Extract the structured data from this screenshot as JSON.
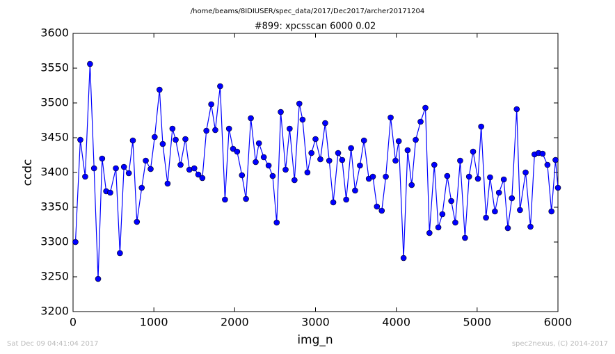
{
  "chart_data": {
    "type": "line",
    "subtitle": "/home/beams/8IDIUSER/spec_data/2017/Dec2017/archer20171204",
    "title": "#899: xpcsscan 6000 0.02",
    "x_label": "img_n",
    "y_label": "ccdc",
    "footer_left": "Sat Dec 09 04:41:04 2017",
    "footer_right": "spec2nexus, (C) 2014-2017",
    "x": [
      30,
      90,
      150,
      210,
      260,
      310,
      360,
      410,
      460,
      530,
      580,
      630,
      690,
      740,
      790,
      850,
      900,
      960,
      1010,
      1070,
      1110,
      1170,
      1230,
      1270,
      1330,
      1390,
      1440,
      1500,
      1550,
      1600,
      1650,
      1710,
      1760,
      1820,
      1880,
      1930,
      1980,
      2030,
      2090,
      2140,
      2200,
      2260,
      2300,
      2360,
      2420,
      2470,
      2520,
      2570,
      2630,
      2680,
      2740,
      2800,
      2840,
      2900,
      2950,
      3000,
      3060,
      3120,
      3170,
      3220,
      3280,
      3330,
      3380,
      3440,
      3490,
      3550,
      3600,
      3660,
      3710,
      3760,
      3820,
      3870,
      3930,
      3990,
      4030,
      4090,
      4140,
      4190,
      4240,
      4300,
      4360,
      4410,
      4470,
      4520,
      4570,
      4630,
      4680,
      4730,
      4790,
      4850,
      4900,
      4950,
      5010,
      5050,
      5110,
      5160,
      5220,
      5270,
      5330,
      5380,
      5430,
      5490,
      5530,
      5600,
      5660,
      5710,
      5760,
      5810,
      5870,
      5920,
      5970,
      6000
    ],
    "series": [
      {
        "color": "#0000ff",
        "values": [
          3300,
          3447,
          3394,
          3556,
          3406,
          3247,
          3420,
          3373,
          3371,
          3406,
          3284,
          3408,
          3399,
          3446,
          3329,
          3378,
          3417,
          3405,
          3451,
          3519,
          3441,
          3384,
          3463,
          3447,
          3411,
          3448,
          3404,
          3406,
          3397,
          3392,
          3460,
          3498,
          3461,
          3524,
          3361,
          3463,
          3434,
          3430,
          3396,
          3362,
          3478,
          3415,
          3442,
          3422,
          3410,
          3395,
          3328,
          3487,
          3404,
          3463,
          3389,
          3499,
          3476,
          3400,
          3428,
          3448,
          3419,
          3471,
          3417,
          3357,
          3428,
          3418,
          3361,
          3435,
          3374,
          3410,
          3446,
          3391,
          3394,
          3351,
          3345,
          3394,
          3479,
          3417,
          3445,
          3277,
          3432,
          3382,
          3447,
          3473,
          3493,
          3313,
          3411,
          3321,
          3340,
          3395,
          3359,
          3328,
          3417,
          3306,
          3394,
          3430,
          3391,
          3466,
          3335,
          3393,
          3344,
          3371,
          3390,
          3320,
          3363,
          3491,
          3346,
          3400,
          3322,
          3426,
          3428,
          3427,
          3411,
          3344,
          3418,
          3378
        ]
      }
    ],
    "xlim": [
      0,
      6000
    ],
    "xticks": [
      0,
      1000,
      2000,
      3000,
      4000,
      5000,
      6000
    ],
    "ylim": [
      3200,
      3600
    ],
    "yticks": [
      3200,
      3250,
      3300,
      3350,
      3400,
      3450,
      3500,
      3550,
      3600
    ],
    "grid": false
  }
}
